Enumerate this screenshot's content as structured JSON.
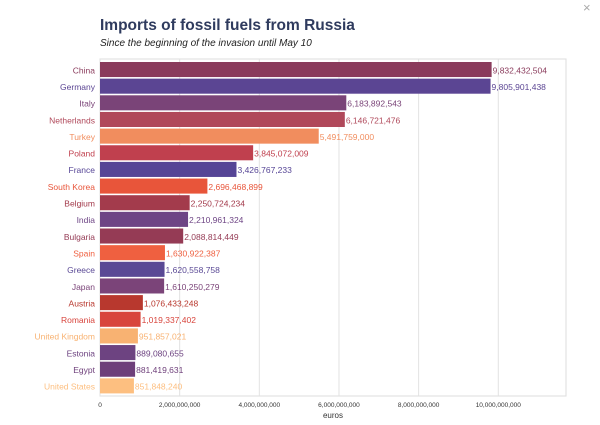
{
  "window": {
    "close_label": "×"
  },
  "chart_data": {
    "type": "bar",
    "orientation": "horizontal",
    "title": "Imports of fossil fuels from Russia",
    "subtitle": "Since the beginning of the invasion until May 10",
    "xlabel": "euros",
    "ylabel": "",
    "xlim": [
      0,
      11700000000
    ],
    "xticks": [
      0,
      2000000000,
      4000000000,
      6000000000,
      8000000000,
      10000000000
    ],
    "xtick_labels": [
      "0",
      "2,000,000,000",
      "4,000,000,000",
      "6,000,000,000",
      "8,000,000,000",
      "10,000,000,000"
    ],
    "grid": true,
    "categories": [
      "China",
      "Germany",
      "Italy",
      "Netherlands",
      "Turkey",
      "Poland",
      "France",
      "South Korea",
      "Belgium",
      "India",
      "Bulgaria",
      "Spain",
      "Greece",
      "Japan",
      "Austria",
      "Romania",
      "United Kingdom",
      "Estonia",
      "Egypt",
      "United States"
    ],
    "values": [
      9832432504,
      9805901438,
      6183892543,
      6146721476,
      5491759000,
      3845072009,
      3426767233,
      2696468899,
      2250724234,
      2210961324,
      2088814449,
      1630922387,
      1620558758,
      1610250279,
      1076433248,
      1019337402,
      951857021,
      889080655,
      881419631,
      851848240
    ],
    "value_labels": [
      "9,832,432,504",
      "9,805,901,438",
      "6,183,892,543",
      "6,146,721,476",
      "5,491,759,000",
      "3,845,072,009",
      "3,426,767,233",
      "2,696,468,899",
      "2,250,724,234",
      "2,210,961,324",
      "2,088,814,449",
      "1,630,922,387",
      "1,620,558,758",
      "1,610,250,279",
      "1,076,433,248",
      "1,019,337,402",
      "951,857,021",
      "889,080,655",
      "881,419,631",
      "851,848,240"
    ],
    "colors": [
      "#8a3b5c",
      "#5b4593",
      "#7a4478",
      "#b0485a",
      "#f18d5e",
      "#c0404e",
      "#564596",
      "#e8553a",
      "#a33b4c",
      "#6e4585",
      "#953b55",
      "#ef6040",
      "#5a4995",
      "#7b4479",
      "#b8382e",
      "#d8453d",
      "#f8b272",
      "#6d4381",
      "#6e3f7a",
      "#fdbf80"
    ]
  }
}
